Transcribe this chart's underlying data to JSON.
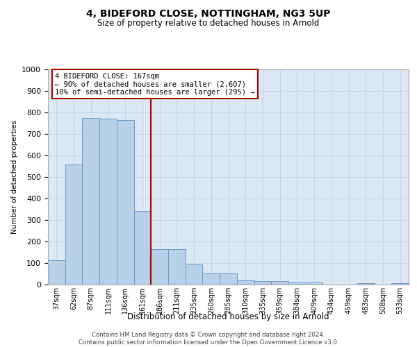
{
  "title": "4, BIDEFORD CLOSE, NOTTINGHAM, NG3 5UP",
  "subtitle": "Size of property relative to detached houses in Arnold",
  "xlabel": "Distribution of detached houses by size in Arnold",
  "ylabel": "Number of detached properties",
  "categories": [
    "37sqm",
    "62sqm",
    "87sqm",
    "111sqm",
    "136sqm",
    "161sqm",
    "186sqm",
    "211sqm",
    "235sqm",
    "260sqm",
    "285sqm",
    "310sqm",
    "335sqm",
    "359sqm",
    "384sqm",
    "409sqm",
    "434sqm",
    "459sqm",
    "483sqm",
    "508sqm",
    "533sqm"
  ],
  "values": [
    112,
    558,
    775,
    770,
    765,
    342,
    163,
    163,
    95,
    52,
    52,
    18,
    15,
    15,
    10,
    10,
    0,
    0,
    8,
    0,
    8
  ],
  "bar_color": "#b8d0e8",
  "bar_edge_color": "#6699cc",
  "grid_color": "#c8d4e4",
  "bg_color": "#dce8f4",
  "vline_x": 5.5,
  "vline_color": "#aa0000",
  "annotation_text": "4 BIDEFORD CLOSE: 167sqm\n← 90% of detached houses are smaller (2,607)\n10% of semi-detached houses are larger (295) →",
  "annotation_box_color": "white",
  "annotation_box_edge_color": "#aa0000",
  "ylim": [
    0,
    1000
  ],
  "yticks": [
    0,
    100,
    200,
    300,
    400,
    500,
    600,
    700,
    800,
    900,
    1000
  ],
  "footer_line1": "Contains HM Land Registry data © Crown copyright and database right 2024.",
  "footer_line2": "Contains public sector information licensed under the Open Government Licence v3.0."
}
